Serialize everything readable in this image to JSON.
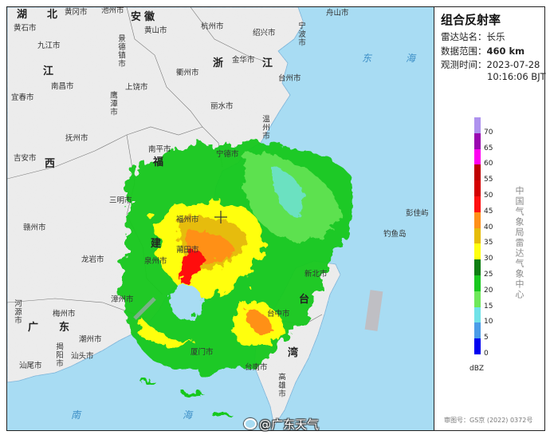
{
  "panel": {
    "title": "组合反射率",
    "station_label": "雷达站名：",
    "station": "长乐",
    "range_label": "数据范围：",
    "range": "460 km",
    "time_label": "观测时间：",
    "date": "2023-07-28",
    "time": "10:16:06 BJT",
    "agency": "中国气象局雷达气象中心",
    "unit": "dBZ",
    "approval": "审图号：GS京 (2022) 0372号"
  },
  "legend": {
    "ticks": [
      "70",
      "65",
      "60",
      "55",
      "50",
      "45",
      "40",
      "35",
      "30",
      "25",
      "20",
      "15",
      "10",
      "5",
      "0"
    ],
    "colors": [
      "#ae92ee",
      "#9a06b0",
      "#ff00f2",
      "#be0000",
      "#d40000",
      "#ff1010",
      "#ff9018",
      "#e6bc08",
      "#ffff10",
      "#0e7e12",
      "#18c81e",
      "#6ee85a",
      "#70e2e8",
      "#4a9ce8",
      "#0000f0"
    ]
  },
  "map": {
    "sea_color": "#a8dcf3",
    "land_color": "#ececec",
    "provinces": [
      "湖",
      "北",
      "安",
      "徽",
      "浙",
      "江",
      "江",
      "福",
      "建",
      "西",
      "广",
      "东",
      "台",
      "湾"
    ],
    "seas": [
      "东",
      "海",
      "南",
      "海"
    ],
    "cities": [
      "黄石市",
      "黄冈市",
      "池州市",
      "黄山市",
      "杭州市",
      "绍兴市",
      "宁波市",
      "舟山市",
      "九江市",
      "景德镇市",
      "衢州市",
      "金华市",
      "台州市",
      "南昌市",
      "上饶市",
      "宜春市",
      "鹰潭市",
      "丽水市",
      "温州市",
      "抚州市",
      "南平市",
      "吉安市",
      "三明市",
      "宁德市",
      "福州市",
      "赣州市",
      "莆田市",
      "泉州市",
      "龙岩市",
      "漳州市",
      "梅州市",
      "河源市",
      "潮州市",
      "揭阳市",
      "汕头市",
      "汕尾市",
      "厦门市",
      "新北市",
      "台中市",
      "台南市",
      "彭佳屿",
      "钓鱼岛",
      "高雄市"
    ]
  },
  "watermark": "@广东天气"
}
